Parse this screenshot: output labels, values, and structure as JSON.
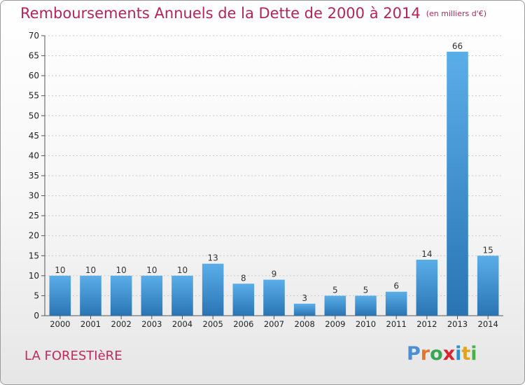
{
  "title": "Remboursements Annuels de la Dette de 2000 à 2014",
  "unit": "(en milliers d'€)",
  "commune": "LA FORESTIèRE",
  "logo": {
    "letters": [
      "P",
      "r",
      "o",
      "x",
      "i",
      "t",
      "i"
    ],
    "colors": [
      "#4a8fd4",
      "#e8742a",
      "#3aa655",
      "#d8262f",
      "#2e8fcf",
      "#e0a322",
      "#4ab048"
    ]
  },
  "colors": {
    "bar_top": "#5aaee8",
    "bar_bottom": "#2a74b4",
    "title": "#b4245a"
  },
  "chart_data": {
    "type": "bar",
    "title": "Remboursements Annuels de la Dette de 2000 à 2014",
    "categories": [
      "2000",
      "2001",
      "2002",
      "2003",
      "2004",
      "2005",
      "2006",
      "2007",
      "2008",
      "2009",
      "2010",
      "2011",
      "2012",
      "2013",
      "2014"
    ],
    "values": [
      10,
      10,
      10,
      10,
      10,
      13,
      8,
      9,
      3,
      5,
      5,
      6,
      14,
      66,
      15
    ],
    "ylim": [
      0,
      70
    ],
    "yticks": [
      0,
      5,
      10,
      15,
      20,
      25,
      30,
      35,
      40,
      45,
      50,
      55,
      60,
      65,
      70
    ],
    "grid": true,
    "xlabel": "",
    "ylabel": ""
  }
}
